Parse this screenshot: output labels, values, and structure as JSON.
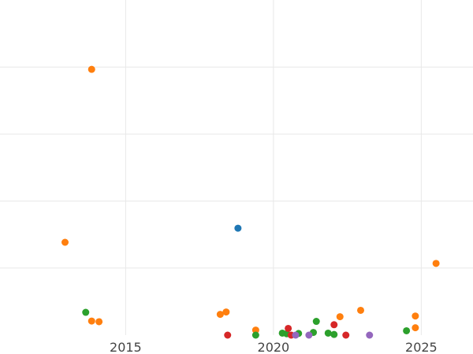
{
  "chart_data": {
    "type": "scatter",
    "title": "",
    "xlabel": "",
    "ylabel": "",
    "grid": true,
    "xlim": [
      2010.75,
      2026.75
    ],
    "ylim": [
      0,
      10
    ],
    "x_ticks": [
      2015,
      2020,
      2025
    ],
    "x_tick_labels": [
      "2015",
      "2020",
      "2025"
    ],
    "y_grid": [
      2,
      4,
      6,
      8
    ],
    "series": [
      {
        "color": "#1f77b4",
        "points": [
          [
            2018.8,
            3.19
          ]
        ]
      },
      {
        "color": "#ff7f0e",
        "points": [
          [
            2013.85,
            7.93
          ],
          [
            2012.95,
            2.77
          ],
          [
            2013.85,
            0.42
          ],
          [
            2014.1,
            0.4
          ],
          [
            2018.2,
            0.62
          ],
          [
            2018.4,
            0.69
          ],
          [
            2019.4,
            0.15
          ],
          [
            2022.25,
            0.55
          ],
          [
            2022.95,
            0.74
          ],
          [
            2024.8,
            0.57
          ],
          [
            2024.8,
            0.22
          ],
          [
            2025.5,
            2.14
          ]
        ]
      },
      {
        "color": "#2ca02c",
        "points": [
          [
            2013.65,
            0.68
          ],
          [
            2019.4,
            0.0
          ],
          [
            2020.3,
            0.06
          ],
          [
            2020.45,
            0.04
          ],
          [
            2020.85,
            0.05
          ],
          [
            2021.35,
            0.08
          ],
          [
            2021.45,
            0.41
          ],
          [
            2021.85,
            0.06
          ],
          [
            2022.05,
            0.02
          ],
          [
            2024.5,
            0.13
          ]
        ]
      },
      {
        "color": "#d62728",
        "points": [
          [
            2018.45,
            0.0
          ],
          [
            2020.5,
            0.2
          ],
          [
            2020.6,
            0.0
          ],
          [
            2022.05,
            0.31
          ],
          [
            2022.45,
            0.0
          ]
        ]
      },
      {
        "color": "#9467bd",
        "points": [
          [
            2020.75,
            0.0
          ],
          [
            2021.2,
            0.0
          ],
          [
            2023.25,
            0.0
          ]
        ]
      }
    ]
  }
}
